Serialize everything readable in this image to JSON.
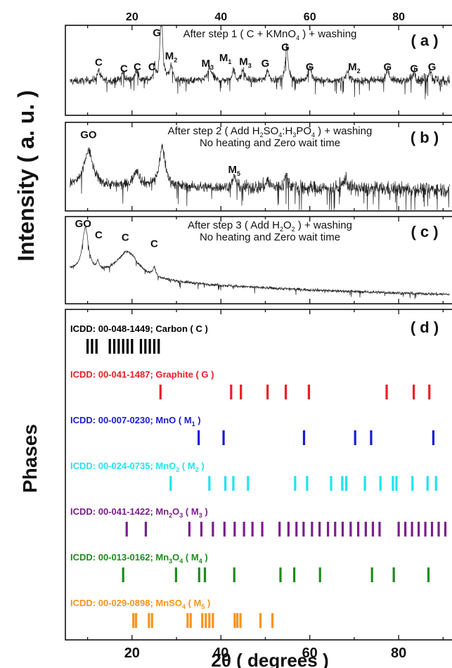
{
  "figure": {
    "y_axis_top_label": "Intensity ( a. u. )",
    "y_axis_bottom_label": "Phases",
    "x_axis_label": "2θ ( degrees )"
  },
  "chart_data": {
    "type": "line",
    "xlim": [
      5,
      92
    ],
    "x_ticks": [
      20,
      40,
      60,
      80
    ],
    "xlabel": "2θ ( degrees )",
    "panels": [
      {
        "id": "a",
        "label": "( a )",
        "annotation_lines": [
          [
            {
              "t": "After step 1 ( C + KMnO"
            },
            {
              "t": "4",
              "s": 1
            },
            {
              "t": " ) + washing"
            }
          ]
        ],
        "baseline": 0.38,
        "noise": 0.07,
        "peaks": [
          {
            "x": 26.6,
            "h": 0.88,
            "w": 0.3
          },
          {
            "x": 12.5,
            "h": 0.12,
            "w": 0.4
          },
          {
            "x": 18.0,
            "h": 0.1,
            "w": 0.4
          },
          {
            "x": 21.0,
            "h": 0.12,
            "w": 0.4
          },
          {
            "x": 25.0,
            "h": 0.16,
            "w": 0.3
          },
          {
            "x": 28.8,
            "h": 0.16,
            "w": 0.4
          },
          {
            "x": 37.5,
            "h": 0.14,
            "w": 0.6
          },
          {
            "x": 42.8,
            "h": 0.12,
            "w": 0.4
          },
          {
            "x": 45.0,
            "h": 0.12,
            "w": 0.4
          },
          {
            "x": 50.5,
            "h": 0.12,
            "w": 0.4
          },
          {
            "x": 54.8,
            "h": 0.4,
            "w": 0.35
          },
          {
            "x": 60.0,
            "h": 0.16,
            "w": 0.4
          },
          {
            "x": 68.5,
            "h": 0.1,
            "w": 0.5
          },
          {
            "x": 77.5,
            "h": 0.14,
            "w": 0.4
          },
          {
            "x": 83.5,
            "h": 0.12,
            "w": 0.4
          },
          {
            "x": 87.0,
            "h": 0.14,
            "w": 0.4
          }
        ],
        "labels": [
          {
            "x": 12.5,
            "y": 0.55,
            "parts": [
              {
                "t": "C"
              }
            ]
          },
          {
            "x": 18.2,
            "y": 0.48,
            "parts": [
              {
                "t": "C"
              }
            ]
          },
          {
            "x": 21.2,
            "y": 0.5,
            "parts": [
              {
                "t": "C"
              }
            ]
          },
          {
            "x": 24.5,
            "y": 0.5,
            "parts": [
              {
                "t": "C"
              }
            ]
          },
          {
            "x": 25.6,
            "y": 0.88,
            "parts": [
              {
                "t": "G"
              }
            ]
          },
          {
            "x": 28.8,
            "y": 0.62,
            "parts": [
              {
                "t": "M"
              },
              {
                "t": "2",
                "s": 1
              }
            ]
          },
          {
            "x": 37.0,
            "y": 0.54,
            "parts": [
              {
                "t": "M"
              },
              {
                "t": "3",
                "s": 1
              }
            ]
          },
          {
            "x": 41.0,
            "y": 0.6,
            "parts": [
              {
                "t": "M"
              },
              {
                "t": "1",
                "s": 1
              }
            ]
          },
          {
            "x": 45.5,
            "y": 0.56,
            "parts": [
              {
                "t": "M"
              },
              {
                "t": "3",
                "s": 1
              }
            ]
          },
          {
            "x": 50.0,
            "y": 0.54,
            "parts": [
              {
                "t": "G"
              }
            ]
          },
          {
            "x": 54.5,
            "y": 0.72,
            "parts": [
              {
                "t": "G"
              }
            ]
          },
          {
            "x": 60.0,
            "y": 0.5,
            "parts": [
              {
                "t": "G"
              }
            ]
          },
          {
            "x": 70.0,
            "y": 0.5,
            "parts": [
              {
                "t": "M"
              },
              {
                "t": "2",
                "s": 1
              }
            ]
          },
          {
            "x": 77.5,
            "y": 0.5,
            "parts": [
              {
                "t": "G"
              }
            ]
          },
          {
            "x": 83.5,
            "y": 0.48,
            "parts": [
              {
                "t": "G"
              }
            ]
          },
          {
            "x": 87.5,
            "y": 0.5,
            "parts": [
              {
                "t": "G"
              }
            ]
          }
        ]
      },
      {
        "id": "b",
        "label": "( b )",
        "annotation_lines": [
          [
            {
              "t": "After step 2 ( Add H"
            },
            {
              "t": "2",
              "s": 1
            },
            {
              "t": "SO"
            },
            {
              "t": "4",
              "s": 1
            },
            {
              "t": ":H"
            },
            {
              "t": "3",
              "s": 1
            },
            {
              "t": "PO"
            },
            {
              "t": "4",
              "s": 1
            },
            {
              "t": " ) + washing"
            }
          ],
          [
            {
              "t": "No heating and Zero wait time"
            }
          ]
        ],
        "baseline": 0.28,
        "noise": 0.1,
        "peaks": [
          {
            "x": 10.2,
            "h": 0.4,
            "w": 1.2
          },
          {
            "x": 21.0,
            "h": 0.18,
            "w": 0.8
          },
          {
            "x": 26.8,
            "h": 0.45,
            "w": 0.8
          },
          {
            "x": 43.0,
            "h": 0.12,
            "w": 0.5
          },
          {
            "x": 50.5,
            "h": 0.08,
            "w": 0.5
          },
          {
            "x": 54.8,
            "h": 0.15,
            "w": 0.5
          },
          {
            "x": 68.0,
            "h": 0.12,
            "w": 0.5
          }
        ],
        "labels": [
          {
            "x": 10.2,
            "y": 0.82,
            "parts": [
              {
                "t": "GO"
              }
            ]
          },
          {
            "x": 43.0,
            "y": 0.43,
            "parts": [
              {
                "t": "M"
              },
              {
                "t": "5",
                "s": 1
              }
            ]
          }
        ]
      },
      {
        "id": "c",
        "label": "( c )",
        "annotation_lines": [
          [
            {
              "t": "After step 3 ( Add H"
            },
            {
              "t": "2",
              "s": 1
            },
            {
              "t": "O"
            },
            {
              "t": "2",
              "s": 1
            },
            {
              "t": " ) + washing"
            }
          ],
          [
            {
              "t": "No heating and Zero wait time"
            }
          ]
        ],
        "baseline": 0.2,
        "noise": 0.03,
        "peaks": [
          {
            "x": 9.5,
            "h": 0.5,
            "w": 0.8
          },
          {
            "x": 12.3,
            "h": 0.08,
            "w": 0.3
          },
          {
            "x": 19.0,
            "h": 0.3,
            "w": 3.0
          },
          {
            "x": 25.0,
            "h": 0.1,
            "w": 0.4
          }
        ],
        "labels": [
          {
            "x": 9.0,
            "y": 0.88,
            "parts": [
              {
                "t": "GO"
              }
            ]
          },
          {
            "x": 12.5,
            "y": 0.75,
            "parts": [
              {
                "t": "C"
              }
            ]
          },
          {
            "x": 18.5,
            "y": 0.72,
            "parts": [
              {
                "t": "C"
              }
            ]
          },
          {
            "x": 25.0,
            "y": 0.65,
            "parts": [
              {
                "t": "C"
              }
            ]
          }
        ]
      }
    ],
    "phases_panel": {
      "label": "( d )",
      "phases": [
        {
          "id": "C",
          "color": "#000000",
          "parts": [
            {
              "t": "ICDD: 00-048-1449; Carbon ( C )"
            }
          ],
          "lines": [
            10,
            11,
            12,
            15,
            16,
            17,
            18,
            19,
            20,
            22,
            23,
            24,
            25,
            26
          ]
        },
        {
          "id": "G",
          "color": "#ee1c25",
          "parts": [
            {
              "t": "ICDD: 00-041-1487; Graphite ( G )"
            }
          ],
          "lines": [
            26.4,
            42.3,
            44.5,
            50.5,
            54.6,
            59.8,
            77.3,
            83.4,
            86.9
          ]
        },
        {
          "id": "M1",
          "color": "#1a1ad6",
          "parts": [
            {
              "t": "ICDD: 00-007-0230; MnO ( M"
            },
            {
              "t": "1",
              "s": 1
            },
            {
              "t": " )"
            }
          ],
          "lines": [
            35.0,
            40.6,
            58.7,
            70.2,
            73.8,
            87.8
          ]
        },
        {
          "id": "M2",
          "color": "#1ee4f0",
          "parts": [
            {
              "t": "ICDD: 00-024-0735; MnO"
            },
            {
              "t": "2",
              "s": 1
            },
            {
              "t": " ( M"
            },
            {
              "t": "2",
              "s": 1
            },
            {
              "t": " )"
            }
          ],
          "lines": [
            28.7,
            37.4,
            41.0,
            42.8,
            46.1,
            56.7,
            59.4,
            64.8,
            67.3,
            68.2,
            72.4,
            75.9,
            78.7,
            79.5,
            83.1,
            86.5,
            88.4
          ]
        },
        {
          "id": "M3",
          "color": "#7a1f8c",
          "parts": [
            {
              "t": "ICDD: 00-041-1422; Mn"
            },
            {
              "t": "2",
              "s": 1
            },
            {
              "t": "O"
            },
            {
              "t": "3",
              "s": 1
            },
            {
              "t": " ( M"
            },
            {
              "t": "3",
              "s": 1
            },
            {
              "t": " )"
            }
          ],
          "lines": [
            18.8,
            23.1,
            32.9,
            35.6,
            38.2,
            40.8,
            43.1,
            45.2,
            47.1,
            49.3,
            53.2,
            55.2,
            57.0,
            58.6,
            60.5,
            62.2,
            64.1,
            65.7,
            67.4,
            69.2,
            70.9,
            72.6,
            74.2,
            75.7,
            80.0,
            81.5,
            83.0,
            84.5,
            86.0,
            87.5,
            89.0,
            90.5
          ]
        },
        {
          "id": "M4",
          "color": "#1e8c1e",
          "parts": [
            {
              "t": "ICDD: 00-013-0162; Mn"
            },
            {
              "t": "3",
              "s": 1
            },
            {
              "t": "O"
            },
            {
              "t": "4",
              "s": 1
            },
            {
              "t": " ( M"
            },
            {
              "t": "4",
              "s": 1
            },
            {
              "t": " )"
            }
          ],
          "lines": [
            18.0,
            29.9,
            35.1,
            36.4,
            43.0,
            53.4,
            56.5,
            62.3,
            74.0,
            78.9,
            86.7
          ]
        },
        {
          "id": "M5",
          "color": "#f7941d",
          "parts": [
            {
              "t": "ICDD: 00-029-0898; MnSO"
            },
            {
              "t": "4",
              "s": 1
            },
            {
              "t": " ( M"
            },
            {
              "t": "5",
              "s": 1
            },
            {
              "t": " )"
            }
          ],
          "lines": [
            20.3,
            20.9,
            23.8,
            24.5,
            32.5,
            33.2,
            35.8,
            36.6,
            37.4,
            38.2,
            43.1,
            43.7,
            44.4,
            48.9,
            51.6
          ]
        }
      ]
    }
  }
}
